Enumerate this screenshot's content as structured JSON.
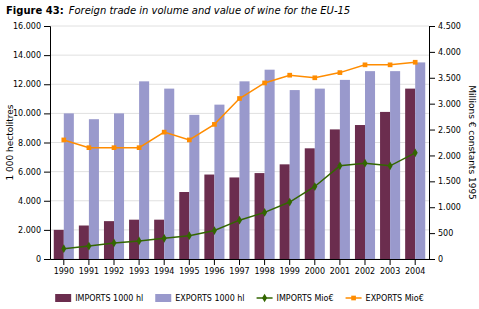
{
  "chart_data": {
    "type": "bar",
    "title": "Figure 43:",
    "subtitle": "Foreign trade in volume and value of wine for the EU-15",
    "categories": [
      "1990",
      "1991",
      "1992",
      "1993",
      "1994",
      "1995",
      "1996",
      "1997",
      "1998",
      "1999",
      "2000",
      "2001",
      "2002",
      "2003",
      "2004"
    ],
    "series": [
      {
        "name": "IMPORTS 1000 hl",
        "type": "bar",
        "color": "#6B2D4E",
        "values": [
          2000,
          2300,
          2600,
          2700,
          2700,
          4600,
          5800,
          5600,
          5900,
          6500,
          7600,
          8900,
          9200,
          10100,
          11700
        ]
      },
      {
        "name": "EXPORTS 1000 hl",
        "type": "bar",
        "color": "#9999CC",
        "values": [
          10000,
          9600,
          10000,
          12200,
          11700,
          9900,
          10600,
          12200,
          13000,
          11600,
          11700,
          12300,
          12900,
          12900,
          13500
        ]
      },
      {
        "name": "IMPORTS Mio€",
        "type": "line",
        "axis": "y2",
        "color": "#336600",
        "marker": "diamond",
        "values": [
          200,
          250,
          310,
          350,
          400,
          450,
          550,
          750,
          900,
          1100,
          1400,
          1800,
          1850,
          1800,
          2050
        ]
      },
      {
        "name": "EXPORTS Mio€",
        "type": "line",
        "axis": "y2",
        "color": "#FF8C00",
        "marker": "square",
        "values": [
          2300,
          2150,
          2150,
          2150,
          2450,
          2300,
          2600,
          3100,
          3400,
          3550,
          3500,
          3600,
          3750,
          3750,
          3800
        ]
      }
    ],
    "ylabel": "1 000 hectolitres",
    "y2label": "Millions € constants 1995",
    "ylim": [
      0,
      16000
    ],
    "yticks": [
      0,
      {
        "value": 2000,
        "label": "2.000"
      },
      {
        "value": 4000,
        "label": "4.000"
      },
      {
        "value": 6000,
        "label": "6.000"
      },
      {
        "value": 8000,
        "label": "8.000"
      },
      {
        "value": 10000,
        "label": "10.000"
      },
      {
        "value": 12000,
        "label": "12.000"
      },
      {
        "value": 14000,
        "label": "14.000"
      },
      {
        "value": 16000,
        "label": "16.000"
      }
    ],
    "y2lim": [
      0,
      4500
    ],
    "y2ticks": [
      0,
      500,
      {
        "value": 1000,
        "label": "1.000"
      },
      {
        "value": 1500,
        "label": "1.500"
      },
      {
        "value": 2000,
        "label": "2.000"
      },
      {
        "value": 2500,
        "label": "2.500"
      },
      {
        "value": 3000,
        "label": "3.000"
      },
      {
        "value": 3500,
        "label": "3.500"
      },
      {
        "value": 4000,
        "label": "4.000"
      },
      {
        "value": 4500,
        "label": "4.500"
      }
    ],
    "grid": true,
    "legend": "bottom"
  }
}
